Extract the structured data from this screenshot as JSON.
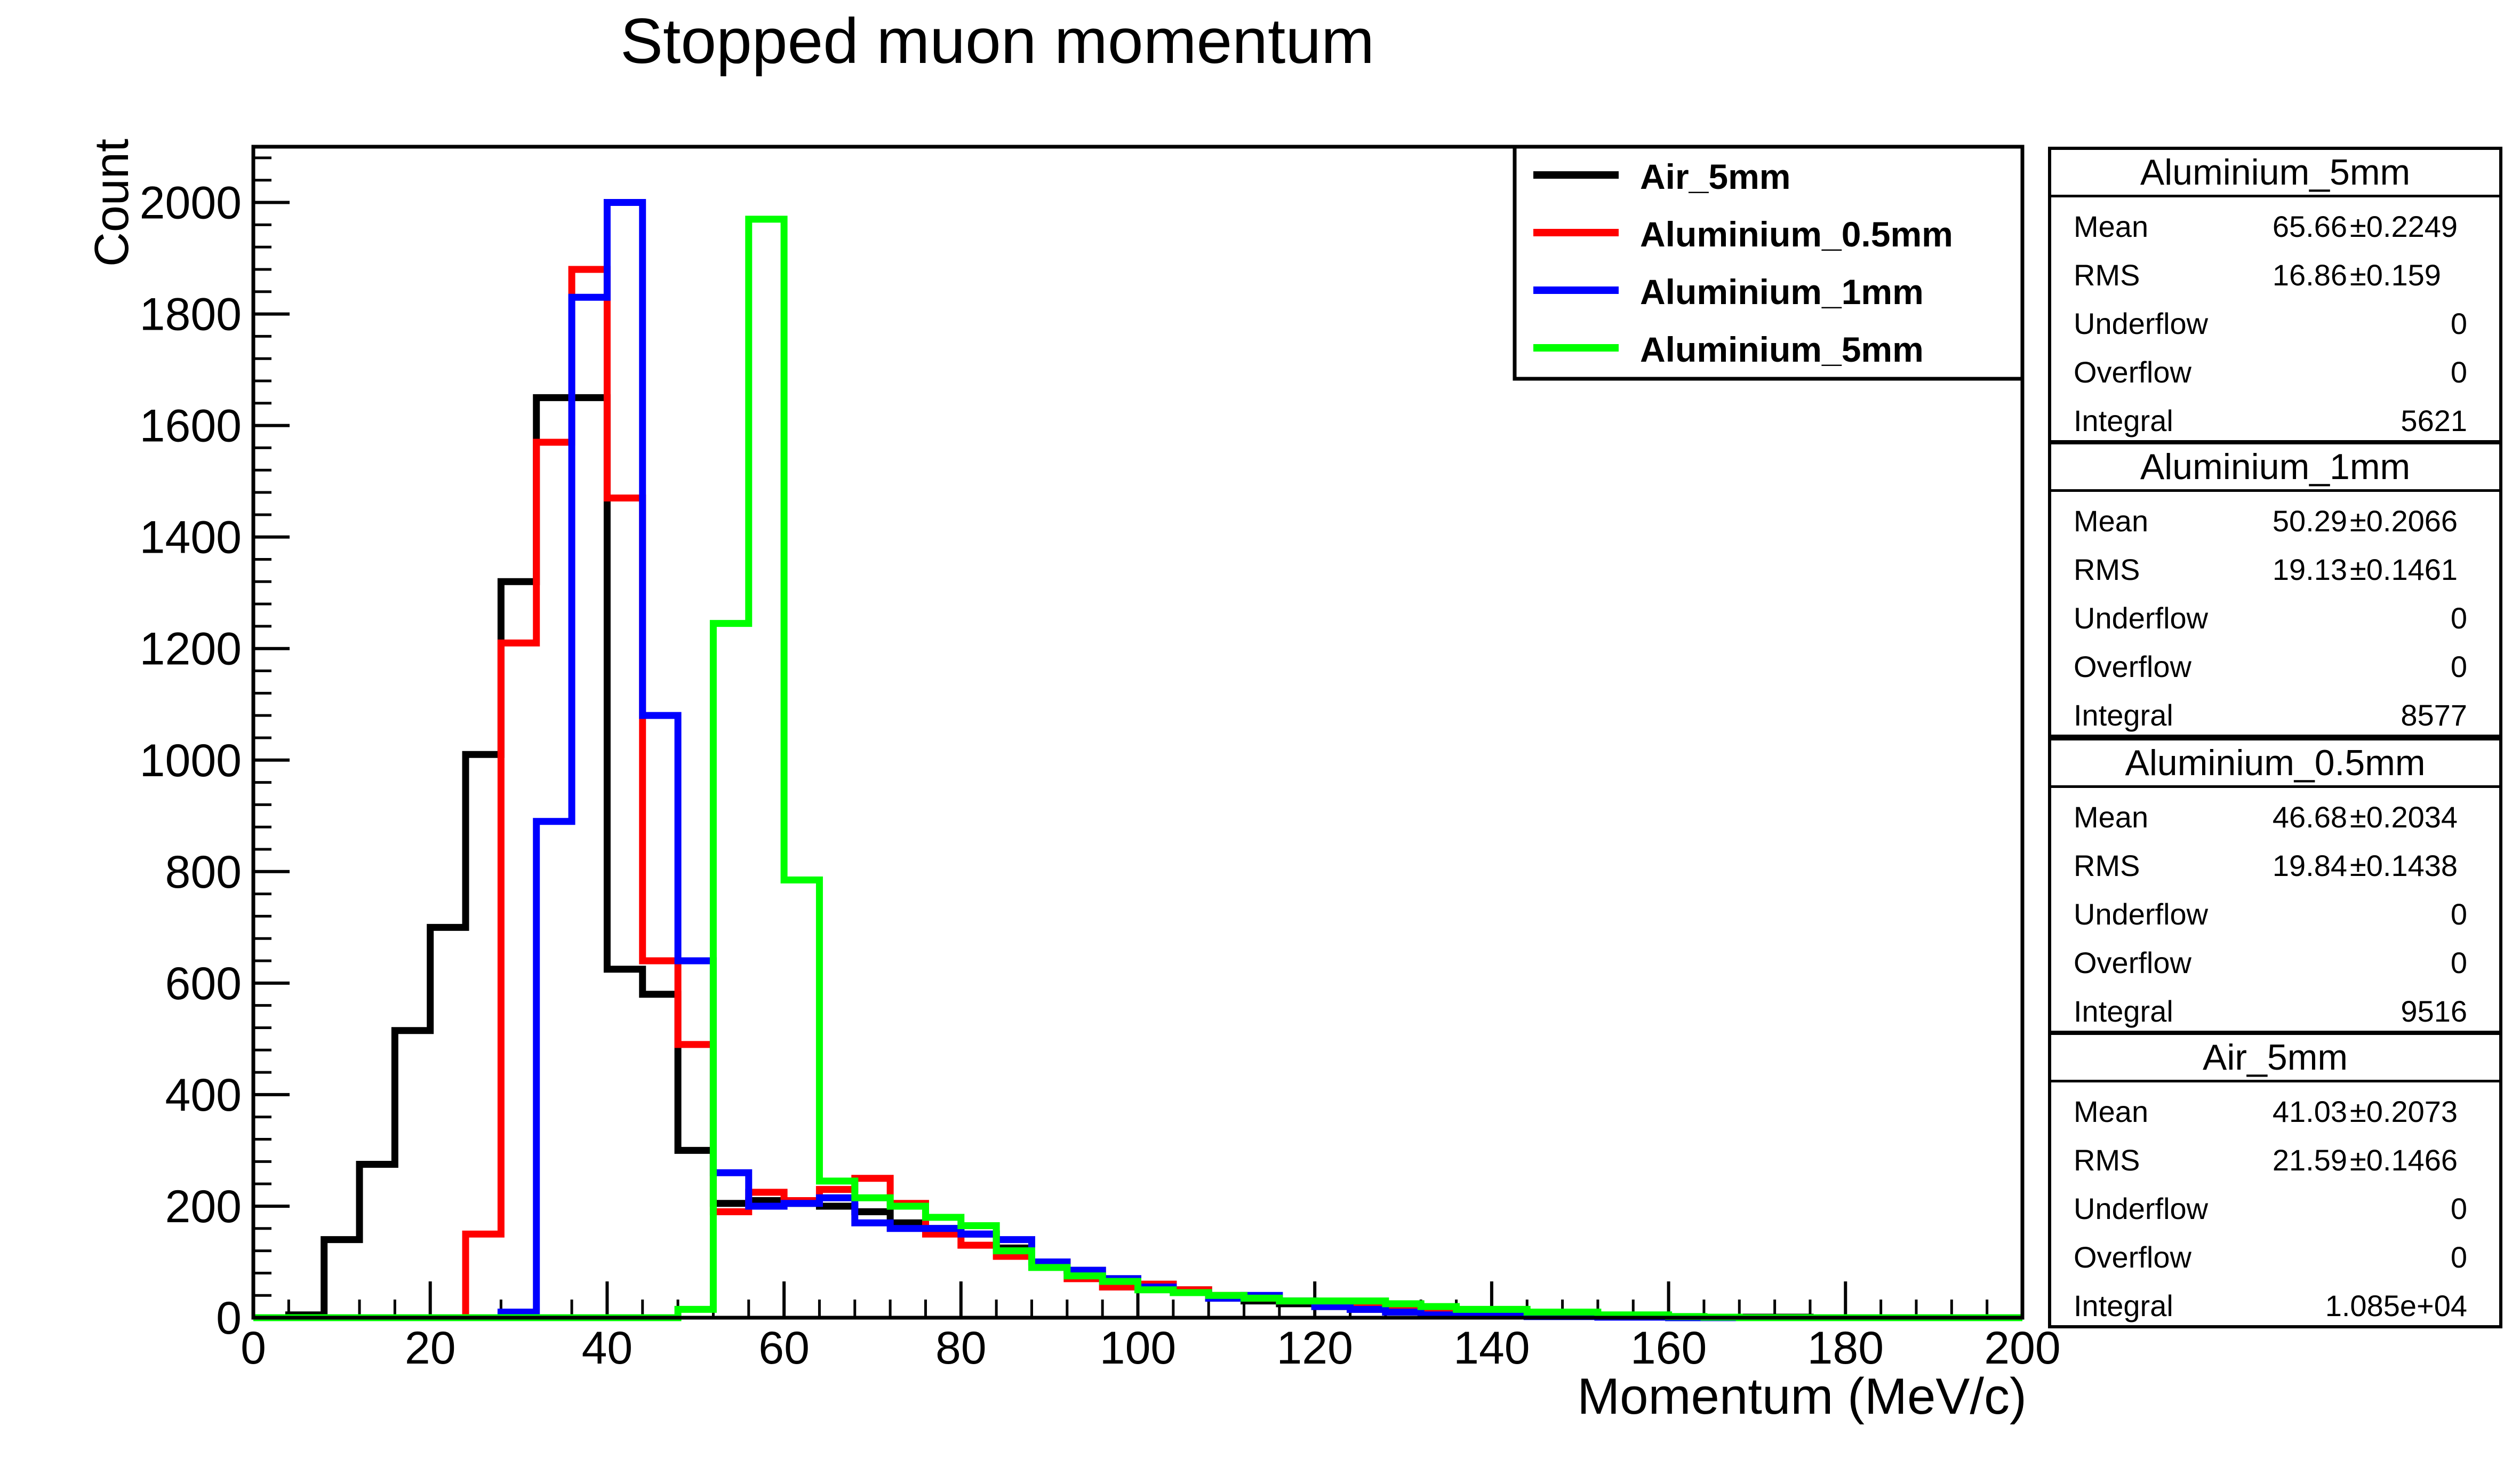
{
  "chart_data": {
    "type": "histogram",
    "title": "Stopped muon momentum",
    "xlabel": "Momentum (MeV/c)",
    "ylabel": "Count",
    "xlim": [
      0,
      200
    ],
    "ylim": [
      0,
      2100
    ],
    "xticks": [
      0,
      20,
      40,
      60,
      80,
      100,
      120,
      140,
      160,
      180,
      200
    ],
    "yticks": [
      0,
      200,
      400,
      600,
      800,
      1000,
      1200,
      1400,
      1600,
      1800,
      2000
    ],
    "bin_width": 4,
    "bin_start": 0,
    "legend_position": "top-right",
    "grid": false,
    "series": [
      {
        "name": "Air_5mm",
        "color": "#000000",
        "values": [
          0,
          5,
          140,
          275,
          515,
          700,
          1010,
          1320,
          1650,
          1650,
          625,
          580,
          300,
          205,
          210,
          205,
          200,
          190,
          170,
          160,
          150,
          125,
          100,
          85,
          70,
          60,
          50,
          35,
          30,
          25,
          20,
          15,
          12,
          10,
          8,
          6,
          5,
          4,
          3,
          2,
          1,
          1,
          1,
          1,
          0,
          0,
          0,
          0,
          0,
          0
        ]
      },
      {
        "name": "Aluminium_0.5mm",
        "color": "#ff0000",
        "values": [
          0,
          0,
          0,
          0,
          0,
          0,
          150,
          1210,
          1570,
          1880,
          1470,
          640,
          490,
          190,
          225,
          210,
          230,
          250,
          205,
          150,
          130,
          110,
          100,
          70,
          55,
          60,
          50,
          40,
          35,
          30,
          25,
          20,
          18,
          15,
          12,
          10,
          8,
          5,
          3,
          2,
          1,
          0,
          0,
          0,
          0,
          0,
          0,
          0,
          0,
          0
        ]
      },
      {
        "name": "Aluminium_1mm",
        "color": "#0000ff",
        "values": [
          0,
          0,
          0,
          0,
          0,
          0,
          0,
          10,
          890,
          1830,
          2000,
          1080,
          640,
          260,
          200,
          205,
          215,
          170,
          160,
          160,
          150,
          140,
          100,
          85,
          70,
          55,
          45,
          35,
          40,
          30,
          20,
          15,
          10,
          5,
          5,
          3,
          2,
          2,
          1,
          1,
          0,
          0,
          0,
          0,
          0,
          0,
          0,
          0,
          0,
          0
        ]
      },
      {
        "name": "Aluminium_5mm",
        "color": "#00ff00",
        "values": [
          0,
          0,
          0,
          0,
          0,
          0,
          0,
          0,
          0,
          0,
          0,
          0,
          15,
          1245,
          1970,
          785,
          245,
          215,
          200,
          180,
          165,
          120,
          90,
          75,
          65,
          50,
          45,
          40,
          35,
          30,
          30,
          30,
          25,
          20,
          15,
          15,
          10,
          10,
          5,
          5,
          2,
          1,
          0,
          0,
          0,
          0,
          0,
          0,
          0,
          0
        ]
      }
    ],
    "stats_boxes": [
      {
        "title": "Aluminium_5mm",
        "mean": "65.66",
        "mean_err": "±0.2249",
        "rms": "16.86",
        "rms_err": "±0.159",
        "underflow": "0",
        "overflow": "0",
        "integral": "5621"
      },
      {
        "title": "Aluminium_1mm",
        "mean": "50.29",
        "mean_err": "±0.2066",
        "rms": "19.13",
        "rms_err": "±0.1461",
        "underflow": "0",
        "overflow": "0",
        "integral": "8577"
      },
      {
        "title": "Aluminium_0.5mm",
        "mean": "46.68",
        "mean_err": "±0.2034",
        "rms": "19.84",
        "rms_err": "±0.1438",
        "underflow": "0",
        "overflow": "0",
        "integral": "9516"
      },
      {
        "title": "Air_5mm",
        "mean": "41.03",
        "mean_err": "±0.2073",
        "rms": "21.59",
        "rms_err": "±0.1466",
        "underflow": "0",
        "overflow": "0",
        "integral": "1.085e+04"
      }
    ],
    "stats_labels": {
      "mean": "Mean",
      "rms": "RMS",
      "underflow": "Underflow",
      "overflow": "Overflow",
      "integral": "Integral"
    }
  }
}
